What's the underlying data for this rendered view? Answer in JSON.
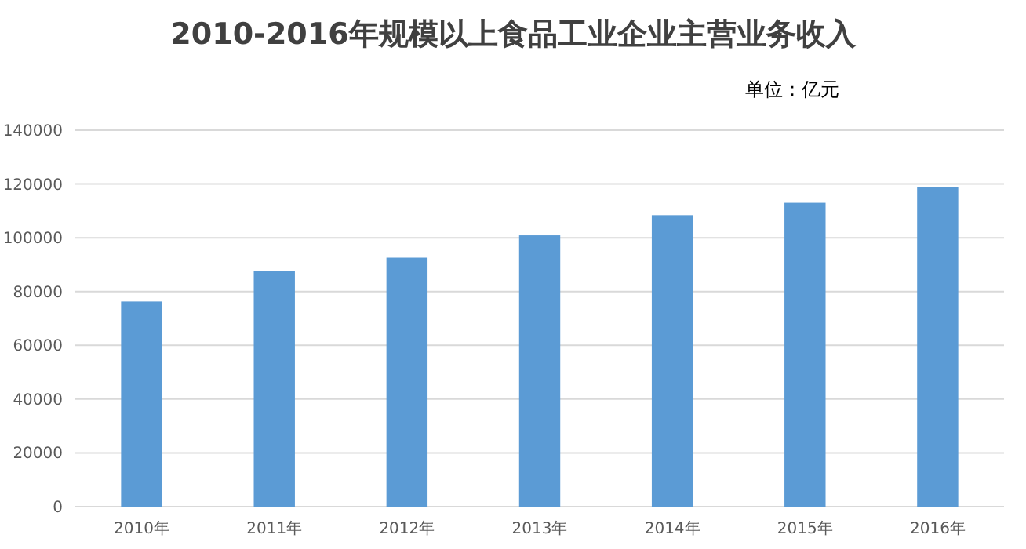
{
  "chart_data": {
    "type": "bar",
    "title": "2010-2016年规模以上食品工业企业主营业务收入",
    "subtitle": "单位：亿元",
    "categories": [
      "2010年",
      "2011年",
      "2012年",
      "2013年",
      "2014年",
      "2015年",
      "2016年"
    ],
    "values": [
      76300,
      87500,
      92600,
      100900,
      108400,
      113000,
      118900
    ],
    "color": "#5b9bd5",
    "ylim": [
      0,
      140000
    ],
    "yticks": [
      0,
      20000,
      40000,
      60000,
      80000,
      100000,
      120000,
      140000
    ],
    "grid": "y"
  }
}
